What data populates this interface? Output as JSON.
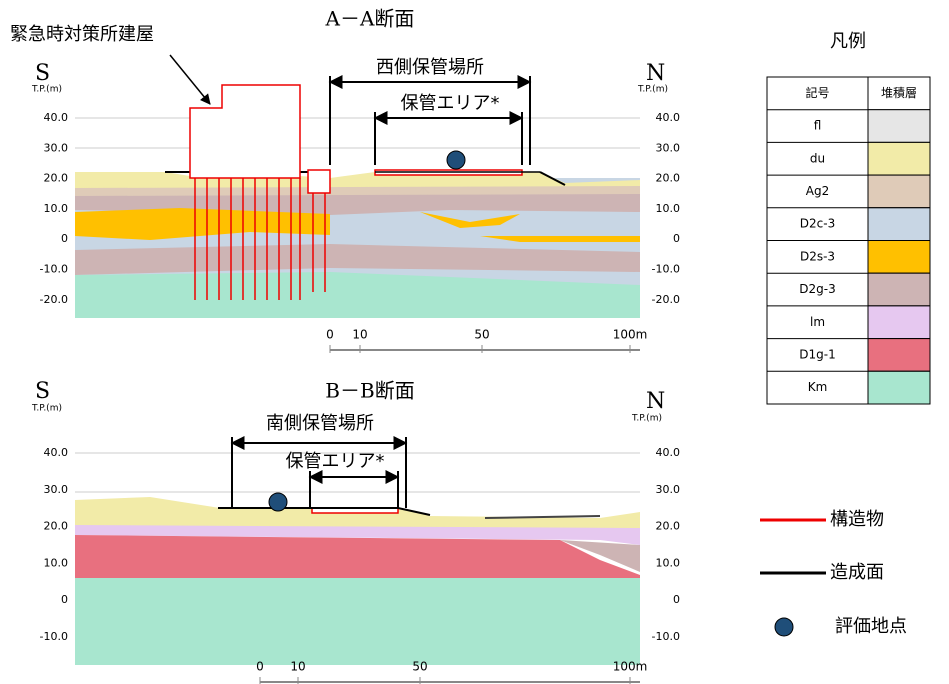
{
  "sections": [
    {
      "title": "A－A断面",
      "left_dir": "S",
      "left_unit": "T.P.(m)",
      "right_dir": "N",
      "right_unit": "T.P.(m)",
      "left_axis": [
        "40.0",
        "30.0",
        "20.0",
        "10.0",
        "0",
        "-10.0",
        "-20.0"
      ],
      "right_axis": [
        "40.0",
        "30.0",
        "20.0",
        "10.0",
        "0",
        "-10.0",
        "-20.0"
      ],
      "building_label": "緊急時対策所建屋",
      "storage_label": "西側保管場所",
      "area_label": "保管エリア*",
      "scale": [
        "0",
        "10",
        "50",
        "100m"
      ]
    },
    {
      "title": "B－B断面",
      "left_dir": "S",
      "left_unit": "T.P.(m)",
      "right_dir": "N",
      "right_unit": "T.P.(m)",
      "left_axis": [
        "40.0",
        "30.0",
        "20.0",
        "10.0",
        "0",
        "-10.0"
      ],
      "right_axis": [
        "40.0",
        "30.0",
        "20.0",
        "10.0",
        "0",
        "-10.0"
      ],
      "storage_label": "南側保管場所",
      "area_label": "保管エリア*",
      "scale": [
        "0",
        "10",
        "50",
        "100m"
      ]
    }
  ],
  "legend": {
    "title": "凡例",
    "header": [
      "記号",
      "堆積層"
    ],
    "rows": [
      {
        "symbol": "fl",
        "color": "#e6e6e6"
      },
      {
        "symbol": "du",
        "color": "#f2eba8"
      },
      {
        "symbol": "Ag2",
        "color": "#dfcbb8"
      },
      {
        "symbol": "D2c-3",
        "color": "#c8d6e4"
      },
      {
        "symbol": "D2s-3",
        "color": "#ffc000"
      },
      {
        "symbol": "D2g-3",
        "color": "#cdb4b4"
      },
      {
        "symbol": "lm",
        "color": "#e6c8f0"
      },
      {
        "symbol": "D1g-1",
        "color": "#e8707f"
      },
      {
        "symbol": "Km",
        "color": "#a8e6cf"
      }
    ]
  },
  "key": {
    "structure": "構造物",
    "surface": "造成面",
    "point": "評価地点"
  }
}
